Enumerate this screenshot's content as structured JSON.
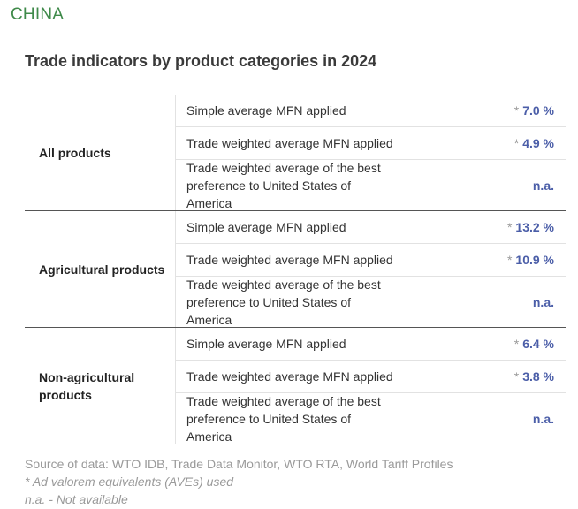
{
  "country": "CHINA",
  "title": "Trade indicators by product categories in 2024",
  "groups": [
    {
      "label": "All products",
      "rows": [
        {
          "label": "Simple average MFN applied",
          "star": "*",
          "value": "7.0 %"
        },
        {
          "label": "Trade weighted average MFN applied",
          "star": "*",
          "value": "4.9 %"
        },
        {
          "label": "Trade weighted average of the best preference to United States of America",
          "star": "",
          "value": "n.a."
        }
      ]
    },
    {
      "label": "Agricultural products",
      "rows": [
        {
          "label": "Simple average MFN applied",
          "star": "*",
          "value": "13.2 %"
        },
        {
          "label": "Trade weighted average MFN applied",
          "star": "*",
          "value": "10.9 %"
        },
        {
          "label": "Trade weighted average of the best preference to United States of America",
          "star": "",
          "value": "n.a."
        }
      ]
    },
    {
      "label": "Non-agricultural products",
      "rows": [
        {
          "label": "Simple average MFN applied",
          "star": "*",
          "value": "6.4 %"
        },
        {
          "label": "Trade weighted average MFN applied",
          "star": "*",
          "value": "3.8 %"
        },
        {
          "label": "Trade weighted average of the best preference to United States of America",
          "star": "",
          "value": "n.a."
        }
      ]
    }
  ],
  "footer": {
    "source": "Source of data: WTO IDB, Trade Data Monitor, WTO RTA, World Tariff Profiles",
    "ave_note": "* Ad valorem equivalents (AVEs) used",
    "na_note": "n.a. - Not available"
  },
  "colors": {
    "country": "#3f8a4a",
    "value": "#4b5ea8",
    "muted": "#9a9a9a"
  }
}
